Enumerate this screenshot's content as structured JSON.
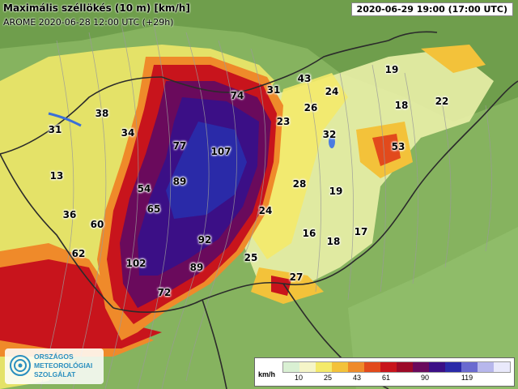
{
  "map": {
    "title": "Maximális széllökés (10 m) [km/h]",
    "subtitle": "AROME 2020-06-28 12:00 UTC (+29h)",
    "valid_time": "2020-06-29 19:00 (17:00 UTC)"
  },
  "labels": [
    {
      "text": "74"
    },
    {
      "text": "31"
    },
    {
      "text": "43"
    },
    {
      "text": "24"
    },
    {
      "text": "19"
    },
    {
      "text": "18"
    },
    {
      "text": "22"
    },
    {
      "text": "38"
    },
    {
      "text": "31"
    },
    {
      "text": "34"
    },
    {
      "text": "26"
    },
    {
      "text": "23"
    },
    {
      "text": "32"
    },
    {
      "text": "53"
    },
    {
      "text": "77"
    },
    {
      "text": "107"
    },
    {
      "text": "13"
    },
    {
      "text": "89"
    },
    {
      "text": "28"
    },
    {
      "text": "19"
    },
    {
      "text": "54"
    },
    {
      "text": "65"
    },
    {
      "text": "36"
    },
    {
      "text": "60"
    },
    {
      "text": "24"
    },
    {
      "text": "16"
    },
    {
      "text": "17"
    },
    {
      "text": "92"
    },
    {
      "text": "18"
    },
    {
      "text": "62"
    },
    {
      "text": "102"
    },
    {
      "text": "89"
    },
    {
      "text": "25"
    },
    {
      "text": "27"
    },
    {
      "text": "72"
    }
  ],
  "legend": {
    "unit": "km/h",
    "ticks": [
      "10",
      "25",
      "43",
      "61",
      "90",
      "119"
    ],
    "colors": [
      "#d9f0d3",
      "#f5f5c8",
      "#f4ea6a",
      "#f3c23a",
      "#ef8a2a",
      "#e24a1c",
      "#c8141c",
      "#9c0a28",
      "#6a0a5c",
      "#3b0f86",
      "#2a2aa8",
      "#6a6ad0",
      "#b7b7ec",
      "#e9e9fb"
    ]
  },
  "logo": {
    "line1": "ORSZÁGOS",
    "line2": "METEOROLÓGIAI",
    "line3": "SZOLGÁLAT"
  }
}
